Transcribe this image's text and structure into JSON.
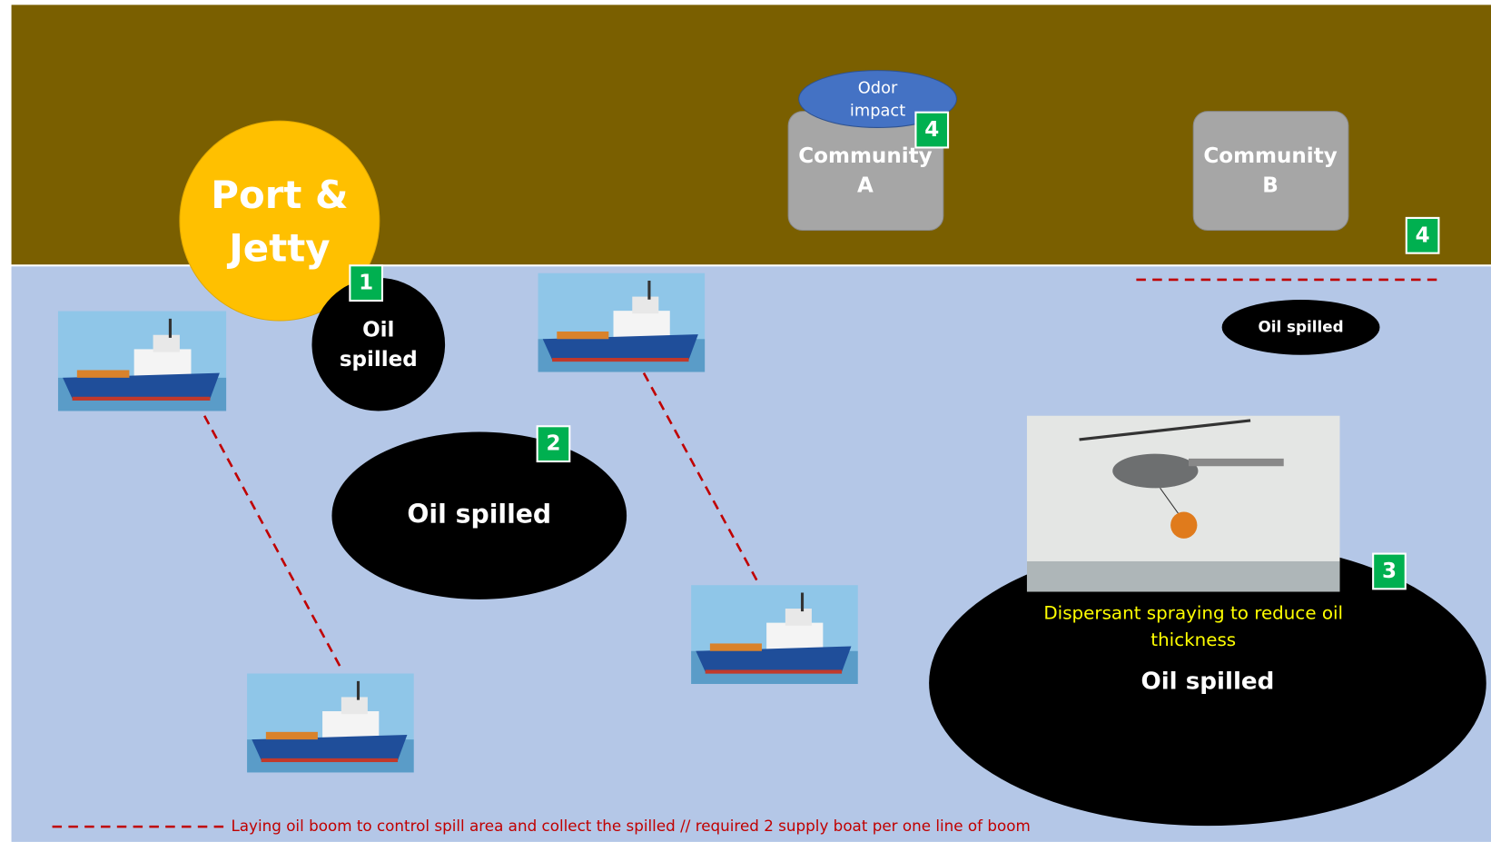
{
  "port": [
    "Port &",
    "Jetty"
  ],
  "odor": [
    "Odor",
    "impact"
  ],
  "community_a": [
    "Community",
    "A"
  ],
  "community_b": [
    "Community",
    "B"
  ],
  "badges": [
    1,
    2,
    3,
    4,
    4
  ],
  "oil_small": [
    "Oil",
    "spilled"
  ],
  "oil_medium": "Oil spilled",
  "oil_right": "Oil spilled",
  "oil_large": "Oil spilled",
  "dispersant": [
    "Dispersant spraying to reduce oil",
    "thickness"
  ],
  "legend": "Laying oil boom to control spill area and collect the spilled // required 2 supply boat per one line of boom"
}
